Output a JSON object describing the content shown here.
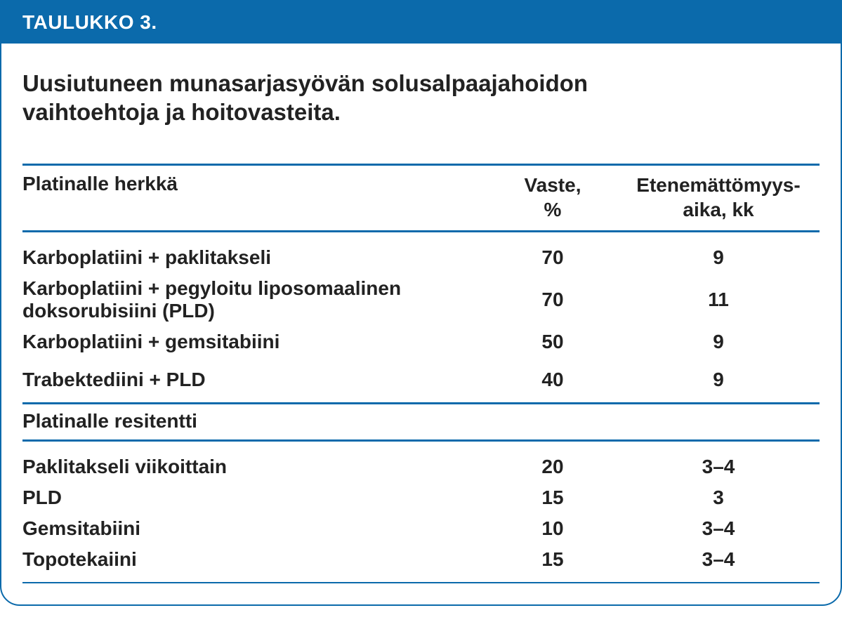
{
  "table": {
    "header_label": "TAULUKKO 3.",
    "caption": "Uusiutuneen munasarjasyövän solusalpaajahoidon vaihtoehtoja ja hoitovasteita.",
    "colors": {
      "accent": "#0b6aab",
      "text": "#222222",
      "background": "#ffffff",
      "header_text": "#ffffff"
    },
    "sections": [
      {
        "title": "Platinalle herkkä",
        "show_column_headers": true,
        "column2_header_line1": "Vaste,",
        "column2_header_line2": "%",
        "column3_header_line1": "Etenemättömyys-",
        "column3_header_line2": "aika, kk",
        "rows": [
          {
            "treatment": "Karboplatiini + paklitakseli",
            "response": "70",
            "pfs": "9",
            "extra_gap": false
          },
          {
            "treatment": "Karboplatiini + pegyloitu liposomaalinen doksorubisiini (PLD)",
            "response": "70",
            "pfs": "11",
            "extra_gap": false
          },
          {
            "treatment": "Karboplatiini + gemsitabiini",
            "response": "50",
            "pfs": "9",
            "extra_gap": false
          },
          {
            "treatment": "Trabektediini + PLD",
            "response": "40",
            "pfs": "9",
            "extra_gap": true
          }
        ]
      },
      {
        "title": "Platinalle resitentti",
        "show_column_headers": false,
        "rows": [
          {
            "treatment": "Paklitakseli viikoittain",
            "response": "20",
            "pfs": "3–4",
            "extra_gap": false
          },
          {
            "treatment": "PLD",
            "response": "15",
            "pfs": "3",
            "extra_gap": false
          },
          {
            "treatment": "Gemsitabiini",
            "response": "10",
            "pfs": "3–4",
            "extra_gap": false
          },
          {
            "treatment": "Topotekaiini",
            "response": "15",
            "pfs": "3–4",
            "extra_gap": false
          }
        ]
      }
    ]
  }
}
